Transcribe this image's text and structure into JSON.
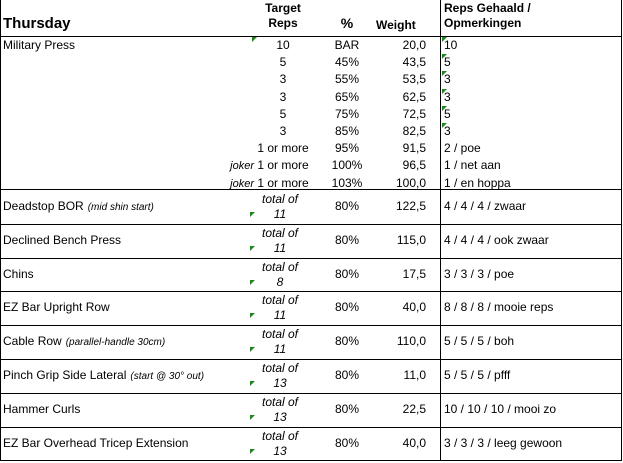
{
  "header": {
    "title": "Thursday",
    "target_reps": "Target\nReps",
    "percent": "%",
    "weight": "Weight",
    "notes": "Reps Gehaald /\nOpmerkingen"
  },
  "military_press": {
    "name": "Military Press",
    "rows": [
      {
        "prefix": null,
        "reps": "10",
        "percent": "BAR",
        "weight": "20,0",
        "notes": "10"
      },
      {
        "prefix": null,
        "reps": "5",
        "percent": "45%",
        "weight": "43,5",
        "notes": "5"
      },
      {
        "prefix": null,
        "reps": "3",
        "percent": "55%",
        "weight": "53,5",
        "notes": "3"
      },
      {
        "prefix": null,
        "reps": "3",
        "percent": "65%",
        "weight": "62,5",
        "notes": "3"
      },
      {
        "prefix": null,
        "reps": "5",
        "percent": "75%",
        "weight": "72,5",
        "notes": "5"
      },
      {
        "prefix": null,
        "reps": "3",
        "percent": "85%",
        "weight": "82,5",
        "notes": "3"
      },
      {
        "prefix": null,
        "reps": "1 or more",
        "percent": "95%",
        "weight": "91,5",
        "notes": "2 / poe"
      },
      {
        "prefix": "joker",
        "reps": "1 or more",
        "percent": "100%",
        "weight": "96,5",
        "notes": "1 / net aan"
      },
      {
        "prefix": "joker",
        "reps": "1 or more",
        "percent": "103%",
        "weight": "100,0",
        "notes": "1 / en hoppa"
      }
    ]
  },
  "exercises": [
    {
      "name": "Deadstop BOR",
      "note": "(mid shin start)",
      "reps": "total of\n11",
      "percent": "80%",
      "weight": "122,5",
      "notes": "4 / 4 / 4 / zwaar"
    },
    {
      "name": "Declined Bench Press",
      "note": null,
      "reps": "total of\n11",
      "percent": "80%",
      "weight": "115,0",
      "notes": "4 / 4 / 4 / ook zwaar"
    },
    {
      "name": "Chins",
      "note": null,
      "reps": "total of\n8",
      "percent": "80%",
      "weight": "17,5",
      "notes": "3 / 3 / 3 / poe"
    },
    {
      "name": "EZ Bar Upright Row",
      "note": null,
      "reps": "total of\n11",
      "percent": "80%",
      "weight": "40,0",
      "notes": "8 / 8 / 8 / mooie reps"
    },
    {
      "name": "Cable Row",
      "note": "(parallel-handle 30cm)",
      "reps": "total of\n11",
      "percent": "80%",
      "weight": "110,0",
      "notes": "5 / 5 / 5 / boh"
    },
    {
      "name": "Pinch Grip Side Lateral",
      "note": "(start @ 30° out)",
      "reps": "total of\n13",
      "percent": "80%",
      "weight": "11,0",
      "notes": "5 / 5 / 5 / pfff"
    },
    {
      "name": "Hammer Curls",
      "note": null,
      "reps": "total of\n13",
      "percent": "80%",
      "weight": "22,5",
      "notes": "10 / 10 / 10 / mooi zo"
    },
    {
      "name": "EZ Bar Overhead Tricep Extension",
      "note": null,
      "reps": "total of\n13",
      "percent": "80%",
      "weight": "40,0",
      "notes": "3 / 3 / 3 / leeg gewoon"
    }
  ]
}
